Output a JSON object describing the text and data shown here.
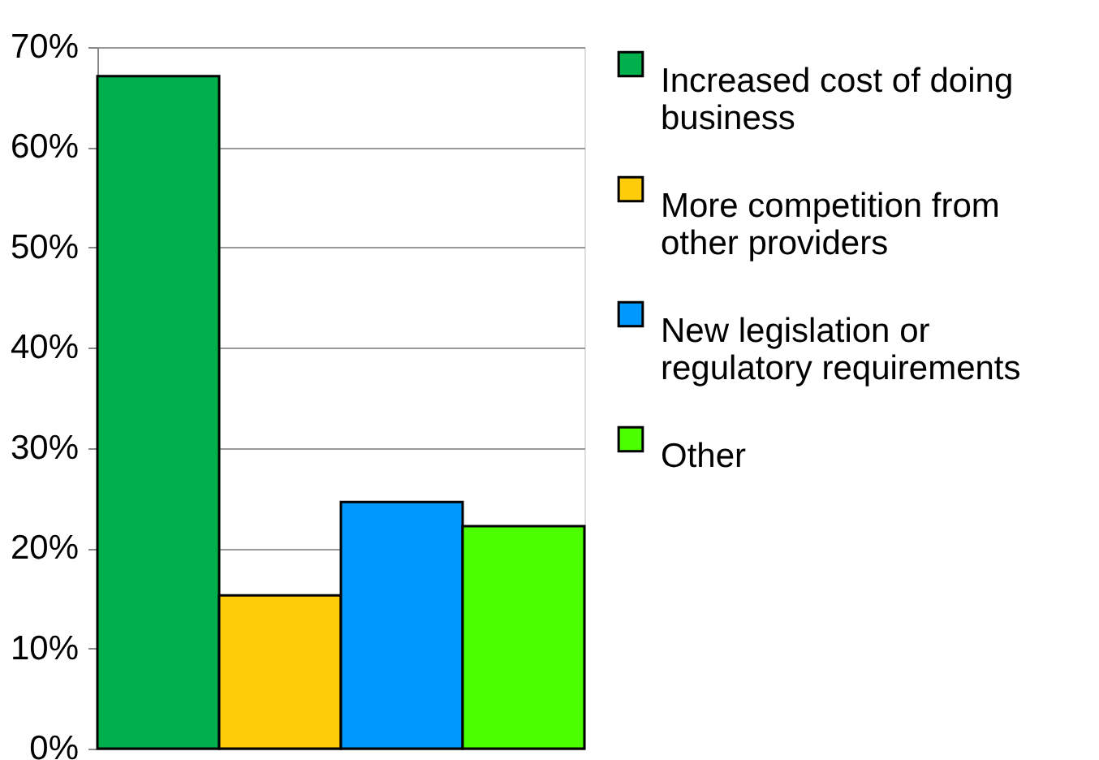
{
  "chart_data": {
    "type": "bar",
    "categories": [
      null
    ],
    "series": [
      {
        "name": "Increased cost of doing business",
        "color": "#00b04c",
        "values": [
          67.1
        ]
      },
      {
        "name": "More competition from other providers",
        "color": "#ffcc0a",
        "values": [
          15.3
        ]
      },
      {
        "name": "New legislation or regulatory requirements",
        "color": "#0099ff",
        "values": [
          24.6
        ]
      },
      {
        "name": "Other",
        "color": "#4cff00",
        "values": [
          22.2
        ]
      }
    ],
    "ylim": [
      0,
      70
    ],
    "yticks": [
      {
        "value": 0,
        "label": "0%"
      },
      {
        "value": 10,
        "label": "10%"
      },
      {
        "value": 20,
        "label": "20%"
      },
      {
        "value": 30,
        "label": "30%"
      },
      {
        "value": 40,
        "label": "40%"
      },
      {
        "value": 50,
        "label": "50%"
      },
      {
        "value": 60,
        "label": "60%"
      },
      {
        "value": 70,
        "label": "70%"
      }
    ],
    "grid": "y",
    "legend": "right"
  }
}
